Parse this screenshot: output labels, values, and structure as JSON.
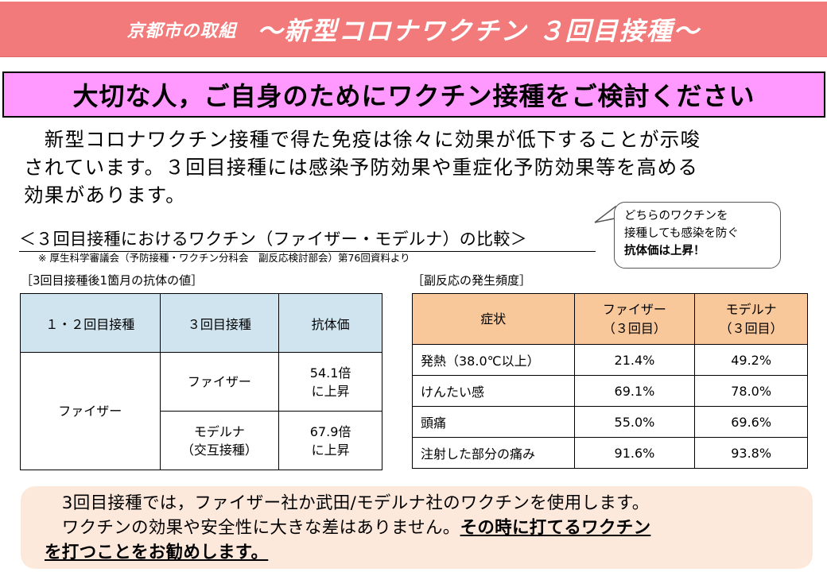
{
  "header": {
    "sub": "京都市の取組",
    "main": "～新型コロナワクチン ３回目接種～"
  },
  "banner": {
    "text": "大切な人，ご自身のためにワクチン接種をご検討ください"
  },
  "intro": {
    "lines": [
      "　新型コロナワクチン接種で得た免疫は徐々に効果が低下することが示唆",
      "されています。３回目接種には感染予防効果や重症化予防効果等を高める",
      "効果があります。"
    ]
  },
  "comparison": {
    "title": "＜３回目接種におけるワクチン（ファイザー・モデルナ）の比較＞",
    "source": "※ 厚生科学審議会（予防接種・ワクチン分科会　副反応検討部会）第76回資料より"
  },
  "bubble": {
    "line1": "どちらのワクチンを",
    "line2": "接種しても感染を防ぐ",
    "line3": "抗体価は上昇！"
  },
  "antibody_table": {
    "caption": "［3回目接種後1箇月の抗体の値］",
    "headers": [
      "１・２回目接種",
      "３回目接種",
      "抗体価"
    ],
    "first_dose": "ファイザー",
    "rows": [
      {
        "third": "ファイザー",
        "value1": "54.1倍",
        "value2": "に上昇"
      },
      {
        "third1": "モデルナ",
        "third2": "（交互接種）",
        "value1": "67.9倍",
        "value2": "に上昇"
      }
    ]
  },
  "side_effects_table": {
    "caption": "［副反応の発生頻度］",
    "headers": {
      "symptom": "症状",
      "pfizer1": "ファイザー",
      "pfizer2": "（３回目）",
      "moderna1": "モデルナ",
      "moderna2": "（３回目）"
    },
    "rows": [
      {
        "symptom": "発熱（38.0℃以上）",
        "pfizer": "21.4%",
        "moderna": "49.2%"
      },
      {
        "symptom": "けんたい感",
        "pfizer": "69.1%",
        "moderna": "78.0%"
      },
      {
        "symptom": "頭痛",
        "pfizer": "55.0%",
        "moderna": "69.6%"
      },
      {
        "symptom": "注射した部分の痛み",
        "pfizer": "91.6%",
        "moderna": "93.8%"
      }
    ]
  },
  "footer": {
    "line1": "　3回目接種では，ファイザー社か武田/モデルナ社のワクチンを使用します。",
    "line2_plain": "　ワクチンの効果や安全性に大きな差はありません。",
    "line2_emph": "その時に打てるワクチン",
    "line3_emph": "を打つことをお勧めします。"
  },
  "colors": {
    "header_bg": "#f27a7a",
    "banner_bg": "#ff99ff",
    "antibody_header_bg": "#cfe4ef",
    "side_effects_header_bg": "#f8c79a",
    "footer_bg": "#fde8dc"
  }
}
